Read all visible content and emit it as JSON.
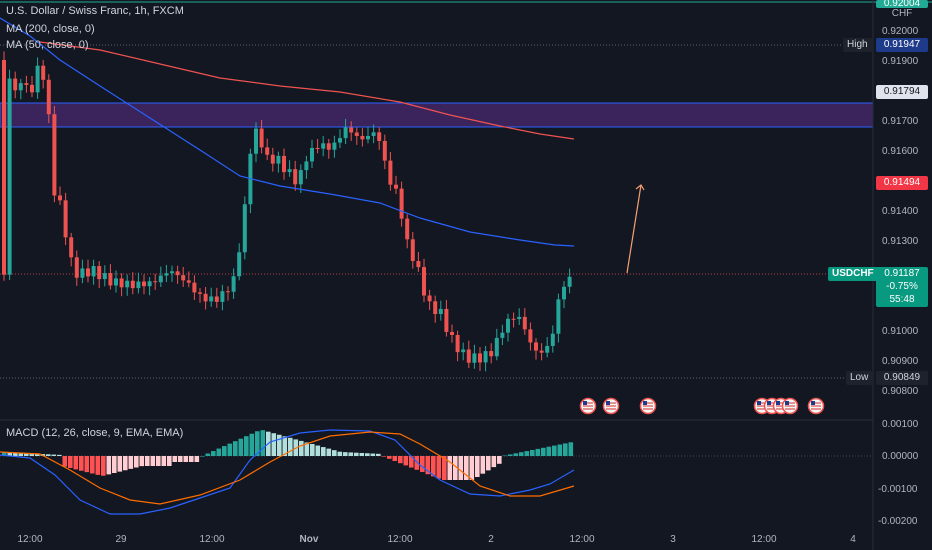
{
  "header": {
    "symbol_title": "U.S. Dollar / Swiss Franc, 1h, FXCM",
    "ma200": "MA (200, close, 0)",
    "ma50": "MA (50, close, 0)"
  },
  "macd_title": "MACD (12, 26, close, 9, EMA, EMA)",
  "price_axis": {
    "currency": "CHF",
    "top_partial": "0.92004",
    "ticks": [
      "0.92000",
      "0.91900",
      "0.91700",
      "0.91600",
      "0.91400",
      "0.91300",
      "0.91000",
      "0.90900",
      "0.90800"
    ],
    "high_label": "High",
    "high_value": "0.91947",
    "zone_value": "0.91794",
    "target_value": "0.91494",
    "symbol": "USDCHF",
    "last_price": "0.91187",
    "change": "-0.75%",
    "countdown": "55:48",
    "low_label": "Low",
    "low_value": "0.90849"
  },
  "macd_axis": {
    "ticks": [
      "0.00100",
      "0.00000",
      "-0.00100",
      "-0.00200"
    ]
  },
  "time_axis": {
    "ticks": [
      "12:00",
      "29",
      "12:00",
      "Nov",
      "12:00",
      "2",
      "12:00",
      "3",
      "12:00",
      "4"
    ]
  },
  "colors": {
    "background": "#131722",
    "bull": "#26a69a",
    "bear": "#ef5350",
    "ma200": "#ef5350",
    "ma50": "#2962ff",
    "zone": "#4a2a70",
    "arrow": "#f7a071",
    "high_tag": "#1e3a8a",
    "target_tag": "#f23645",
    "symbol_tag": "#089981"
  },
  "icons": {
    "events": "us-flag-icon"
  }
}
